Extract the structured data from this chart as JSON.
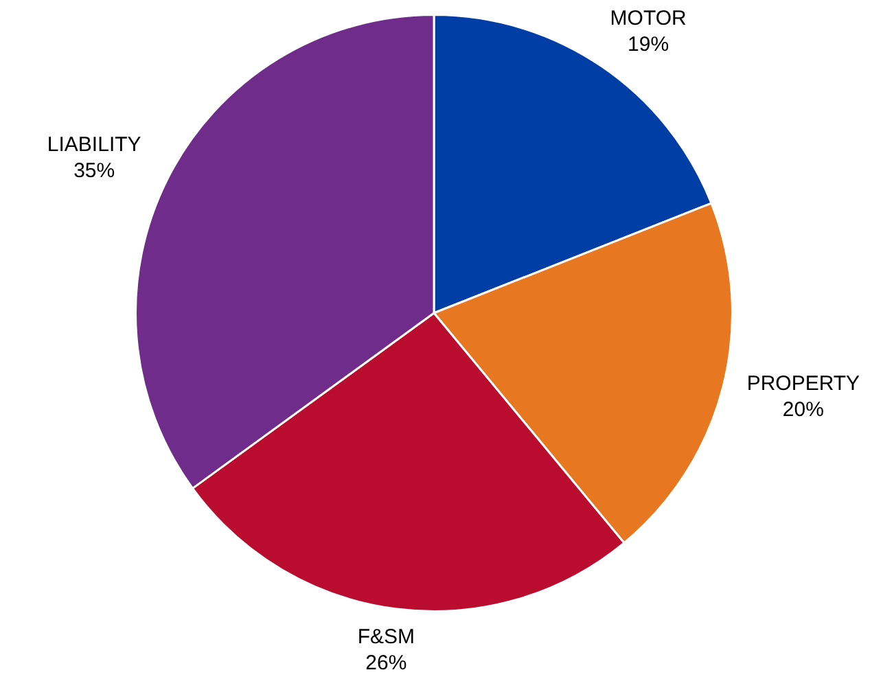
{
  "chart_data": {
    "type": "pie",
    "categories": [
      "MOTOR",
      "PROPERTY",
      "F&SM",
      "LIABILITY"
    ],
    "values": [
      19,
      20,
      26,
      35
    ],
    "colors": [
      "#003da5",
      "#e87722",
      "#ba0c2f",
      "#6f2c8a"
    ],
    "value_labels": [
      "19%",
      "20%",
      "26%",
      "35%"
    ],
    "legend": false
  }
}
